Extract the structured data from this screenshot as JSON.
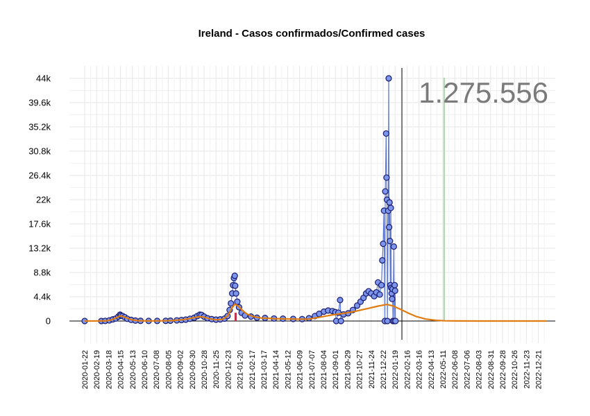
{
  "chart_data": {
    "type": "line",
    "title": "Ireland - Casos confirmados/Confirmed cases",
    "xlabel": "",
    "ylabel": "",
    "ylim": [
      -3300,
      46000
    ],
    "yticks": [
      0,
      4400,
      8800,
      13200,
      17600,
      22000,
      26400,
      30800,
      35200,
      39600,
      44000
    ],
    "ytick_labels": [
      "0",
      "4.4k",
      "8.8k",
      "13.2k",
      "17.6k",
      "22k",
      "26.4k",
      "30.8k",
      "35.2k",
      "39.6k",
      "44k"
    ],
    "x_start": "2020-01-22",
    "x_end": "2023-01-15",
    "xtick_labels": [
      "2020-01-22",
      "2020-02-19",
      "2020-03-18",
      "2020-04-15",
      "2020-05-13",
      "2020-06-10",
      "2020-07-08",
      "2020-08-05",
      "2020-09-02",
      "2020-09-30",
      "2020-10-28",
      "2020-11-25",
      "2020-12-23",
      "2021-01-20",
      "2021-02-17",
      "2021-03-17",
      "2021-04-14",
      "2021-05-12",
      "2021-06-09",
      "2021-07-07",
      "2021-08-04",
      "2021-09-01",
      "2021-09-29",
      "2021-10-27",
      "2021-11-24",
      "2021-12-22",
      "2022-01-19",
      "2022-02-16",
      "2022-03-16",
      "2022-04-13",
      "2022-05-11",
      "2022-06-08",
      "2022-07-06",
      "2022-08-03",
      "2022-08-31",
      "2022-09-28",
      "2022-10-26",
      "2022-11-23",
      "2022-12-21"
    ],
    "total_label": "1.275.556",
    "current_date": "2022-02-04",
    "marker_date": "2022-05-14",
    "grid": true,
    "legend": "none",
    "series": [
      {
        "kind": "observed",
        "points": [
          [
            "2020-01-22",
            0
          ],
          [
            "2020-03-01",
            0
          ],
          [
            "2020-03-10",
            20
          ],
          [
            "2020-03-20",
            120
          ],
          [
            "2020-03-28",
            300
          ],
          [
            "2020-04-04",
            450
          ],
          [
            "2020-04-10",
            800
          ],
          [
            "2020-04-14",
            1150
          ],
          [
            "2020-04-16",
            1000
          ],
          [
            "2020-04-20",
            900
          ],
          [
            "2020-04-25",
            700
          ],
          [
            "2020-05-01",
            400
          ],
          [
            "2020-05-10",
            200
          ],
          [
            "2020-05-20",
            80
          ],
          [
            "2020-06-01",
            30
          ],
          [
            "2020-06-20",
            15
          ],
          [
            "2020-07-10",
            15
          ],
          [
            "2020-07-30",
            30
          ],
          [
            "2020-08-10",
            60
          ],
          [
            "2020-08-25",
            120
          ],
          [
            "2020-09-05",
            180
          ],
          [
            "2020-09-15",
            250
          ],
          [
            "2020-09-25",
            400
          ],
          [
            "2020-10-05",
            600
          ],
          [
            "2020-10-12",
            900
          ],
          [
            "2020-10-18",
            1150
          ],
          [
            "2020-10-22",
            1100
          ],
          [
            "2020-10-28",
            800
          ],
          [
            "2020-11-05",
            500
          ],
          [
            "2020-11-15",
            350
          ],
          [
            "2020-11-25",
            250
          ],
          [
            "2020-12-05",
            300
          ],
          [
            "2020-12-15",
            430
          ],
          [
            "2020-12-22",
            900
          ],
          [
            "2020-12-27",
            2000
          ],
          [
            "2020-12-30",
            3200
          ],
          [
            "2021-01-02",
            5000
          ],
          [
            "2021-01-04",
            6500
          ],
          [
            "2021-01-06",
            7800
          ],
          [
            "2021-01-08",
            8200
          ],
          [
            "2021-01-09",
            6400
          ],
          [
            "2021-01-11",
            5000
          ],
          [
            "2021-01-14",
            3500
          ],
          [
            "2021-01-18",
            2500
          ],
          [
            "2021-01-24",
            1500
          ],
          [
            "2021-02-01",
            1000
          ],
          [
            "2021-02-15",
            800
          ],
          [
            "2021-03-01",
            600
          ],
          [
            "2021-03-20",
            550
          ],
          [
            "2021-04-10",
            450
          ],
          [
            "2021-05-01",
            420
          ],
          [
            "2021-05-25",
            380
          ],
          [
            "2021-06-15",
            350
          ],
          [
            "2021-07-01",
            500
          ],
          [
            "2021-07-15",
            900
          ],
          [
            "2021-07-25",
            1300
          ],
          [
            "2021-08-05",
            1700
          ],
          [
            "2021-08-15",
            1900
          ],
          [
            "2021-08-25",
            1800
          ],
          [
            "2021-09-01",
            1600
          ],
          [
            "2021-09-03",
            0
          ],
          [
            "2021-09-08",
            1500
          ],
          [
            "2021-09-12",
            3800
          ],
          [
            "2021-09-14",
            0
          ],
          [
            "2021-09-20",
            1200
          ],
          [
            "2021-10-01",
            1400
          ],
          [
            "2021-10-12",
            2000
          ],
          [
            "2021-10-22",
            2800
          ],
          [
            "2021-10-30",
            3500
          ],
          [
            "2021-11-06",
            4200
          ],
          [
            "2021-11-12",
            5000
          ],
          [
            "2021-11-18",
            5400
          ],
          [
            "2021-11-24",
            5000
          ],
          [
            "2021-12-01",
            4500
          ],
          [
            "2021-12-06",
            5200
          ],
          [
            "2021-12-10",
            7000
          ],
          [
            "2021-12-14",
            4800
          ],
          [
            "2021-12-18",
            6500
          ],
          [
            "2021-12-20",
            11000
          ],
          [
            "2021-12-22",
            14000
          ],
          [
            "2021-12-24",
            20000
          ],
          [
            "2021-12-26",
            0
          ],
          [
            "2021-12-27",
            23500
          ],
          [
            "2021-12-29",
            34000
          ],
          [
            "2021-12-30",
            26000
          ],
          [
            "2021-12-31",
            22000
          ],
          [
            "2022-01-01",
            0
          ],
          [
            "2022-01-03",
            20000
          ],
          [
            "2022-01-04",
            44000
          ],
          [
            "2022-01-05",
            17000
          ],
          [
            "2022-01-06",
            21500
          ],
          [
            "2022-01-07",
            14500
          ],
          [
            "2022-01-08",
            6500
          ],
          [
            "2022-01-09",
            20500
          ],
          [
            "2022-01-10",
            6000
          ],
          [
            "2022-01-11",
            5000
          ],
          [
            "2022-01-12",
            4000
          ],
          [
            "2022-01-13",
            5800
          ],
          [
            "2022-01-14",
            0
          ],
          [
            "2022-01-16",
            13500
          ],
          [
            "2022-01-17",
            0
          ],
          [
            "2022-01-18",
            6500
          ],
          [
            "2022-01-19",
            5500
          ],
          [
            "2022-01-20",
            0
          ]
        ]
      },
      {
        "kind": "smoothed",
        "points": [
          [
            "2020-01-22",
            0
          ],
          [
            "2020-03-10",
            10
          ],
          [
            "2020-03-25",
            200
          ],
          [
            "2020-04-05",
            600
          ],
          [
            "2020-04-15",
            950
          ],
          [
            "2020-04-25",
            700
          ],
          [
            "2020-05-10",
            250
          ],
          [
            "2020-05-25",
            60
          ],
          [
            "2020-06-15",
            10
          ],
          [
            "2020-07-15",
            20
          ],
          [
            "2020-08-15",
            80
          ],
          [
            "2020-09-10",
            260
          ],
          [
            "2020-10-01",
            550
          ],
          [
            "2020-10-15",
            780
          ],
          [
            "2020-10-25",
            760
          ],
          [
            "2020-11-10",
            400
          ],
          [
            "2020-11-25",
            230
          ],
          [
            "2020-12-10",
            300
          ],
          [
            "2020-12-22",
            900
          ],
          [
            "2021-01-01",
            2300
          ],
          [
            "2021-01-08",
            3050
          ],
          [
            "2021-01-15",
            2800
          ],
          [
            "2021-01-25",
            2000
          ],
          [
            "2021-02-05",
            1300
          ],
          [
            "2021-02-20",
            800
          ],
          [
            "2021-03-10",
            550
          ],
          [
            "2021-04-10",
            430
          ],
          [
            "2021-05-10",
            380
          ],
          [
            "2021-06-10",
            330
          ],
          [
            "2021-07-01",
            350
          ],
          [
            "2021-07-20",
            600
          ],
          [
            "2021-08-10",
            900
          ],
          [
            "2021-09-01",
            1200
          ],
          [
            "2021-09-25",
            1450
          ],
          [
            "2021-10-20",
            1800
          ],
          [
            "2021-11-15",
            2250
          ],
          [
            "2021-12-10",
            2700
          ],
          [
            "2021-12-31",
            3000
          ],
          [
            "2022-01-15",
            2700
          ],
          [
            "2022-02-01",
            2100
          ],
          [
            "2022-02-20",
            1400
          ],
          [
            "2022-03-10",
            800
          ],
          [
            "2022-04-01",
            350
          ],
          [
            "2022-04-25",
            120
          ],
          [
            "2022-05-15",
            40
          ],
          [
            "2022-06-15",
            10
          ],
          [
            "2022-08-01",
            0
          ],
          [
            "2023-01-10",
            0
          ]
        ]
      }
    ]
  }
}
